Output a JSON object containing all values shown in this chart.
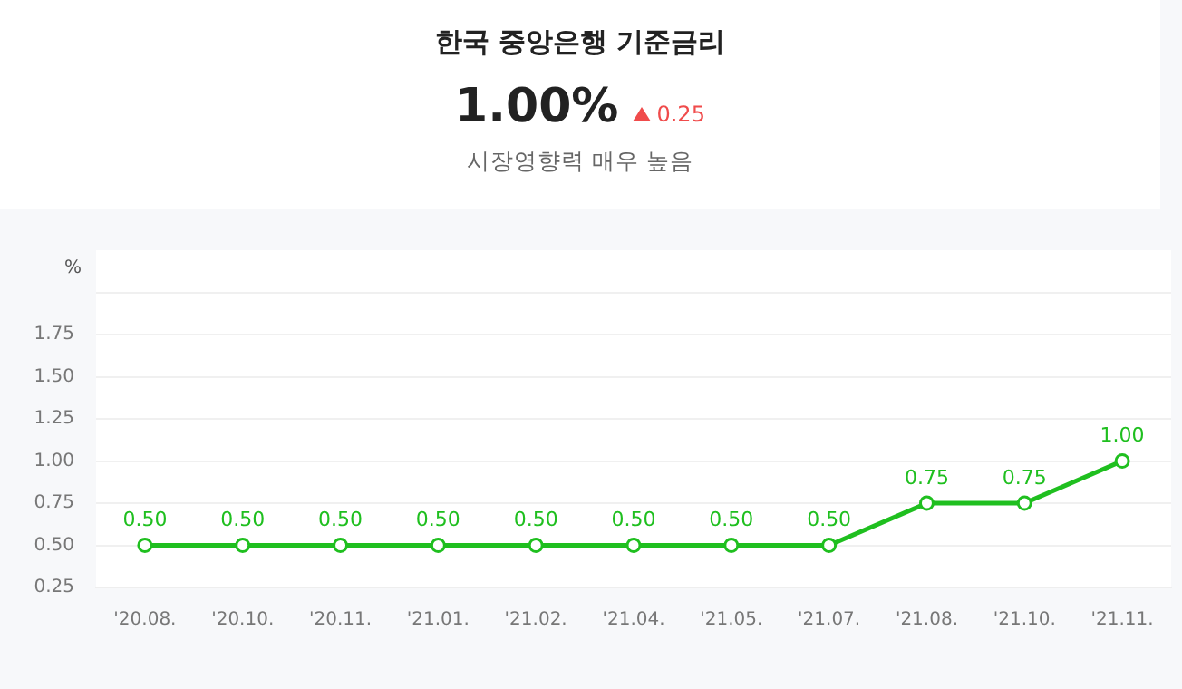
{
  "chart_data": {
    "type": "line",
    "title": "한국 중앙은행 기준금리",
    "annotations": [
      "1.00%",
      "0.25",
      "시장영향력 매우 높음"
    ],
    "ylabel": "%",
    "categories": [
      "'20.08.",
      "'20.10.",
      "'20.11.",
      "'21.01.",
      "'21.02.",
      "'21.04.",
      "'21.05.",
      "'21.07.",
      "'21.08.",
      "'21.10.",
      "'21.11."
    ],
    "series": [
      {
        "color": "#1fbf1f",
        "values": [
          0.5,
          0.5,
          0.5,
          0.5,
          0.5,
          0.5,
          0.5,
          0.5,
          0.75,
          0.75,
          1.0
        ],
        "value_labels": [
          "0.50",
          "0.50",
          "0.50",
          "0.50",
          "0.50",
          "0.50",
          "0.50",
          "0.50",
          "0.75",
          "0.75",
          "1.00"
        ]
      }
    ],
    "ylim": [
      0.25,
      2.25
    ],
    "yticks": [
      {
        "value": 0.25,
        "label": "0.25"
      },
      {
        "value": 0.5,
        "label": "0.50"
      },
      {
        "value": 0.75,
        "label": "0.75"
      },
      {
        "value": 1,
        "label": "1.00"
      },
      {
        "value": 1.25,
        "label": "1.25"
      },
      {
        "value": 1.5,
        "label": "1.50"
      },
      {
        "value": 1.75,
        "label": "1.75"
      },
      {
        "value": 2,
        "label": null
      }
    ],
    "grid": "y",
    "marker": "circle",
    "line_style": "solid",
    "legend": false
  }
}
